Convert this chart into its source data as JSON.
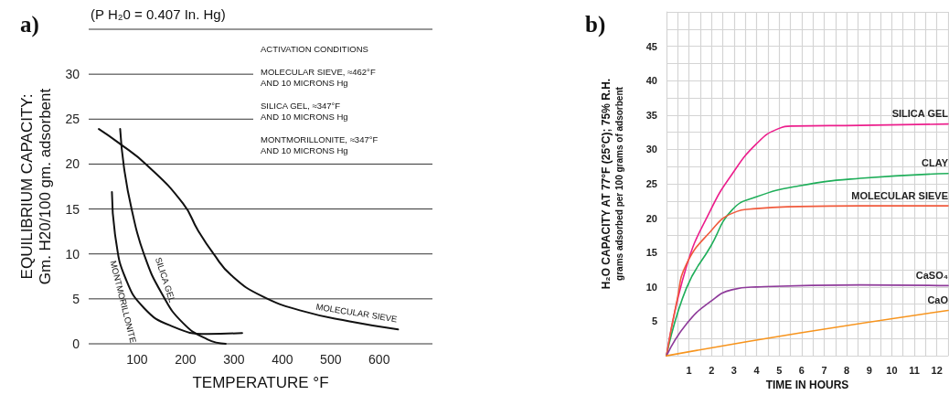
{
  "chart_data": [
    {
      "type": "line",
      "title": "a)",
      "subtitle": "(P H₂0 = 0.407 In. Hg)",
      "xlabel": "TEMPERATURE °F",
      "ylabel": "EQUILIBRIUM CAPACITY:\nGm. H20/100 gm. adsorbent",
      "xlim": [
        0,
        710
      ],
      "xticks": [
        100,
        200,
        300,
        400,
        500,
        600
      ],
      "ylim": [
        0,
        35
      ],
      "yticks": [
        0,
        5,
        10,
        15,
        20,
        25,
        30,
        {
          "value": 35,
          "label": null
        }
      ],
      "grid": "y",
      "marker": "none",
      "annotations": [
        "ACTIVATION CONDITIONS",
        "MOLECULAR SIEVE, ≈462°F\nAND 10 MICRONS Hg",
        "SILICA GEL, ≈347°F\nAND 10 MICRONS Hg",
        "MONTMORILLONITE, ≈347°F\nAND 10 MICRONS Hg",
        "MONTMORILLONITE",
        "SILICA GEL",
        "MOLECULAR SIEVE"
      ],
      "series": [
        {
          "color": "#111111",
          "x": [
            21,
            61,
            120,
            195,
            226,
            258,
            295,
            358,
            445,
            539,
            639
          ],
          "values": [
            23.9,
            22.4,
            19.9,
            15.6,
            12.6,
            10,
            7.6,
            5.3,
            3.6,
            2.5,
            1.6
          ]
        },
        {
          "color": "#111111",
          "x": [
            65,
            73,
            89,
            114,
            151,
            195,
            245,
            283
          ],
          "values": [
            23.9,
            19.6,
            14.9,
            10,
            5.6,
            2.3,
            0.5,
            0
          ]
        },
        {
          "color": "#111111",
          "x": [
            48,
            56,
            76,
            114,
            170,
            245,
            317
          ],
          "values": [
            16.9,
            11.6,
            7.3,
            4,
            2,
            1.1,
            1.2
          ]
        }
      ]
    },
    {
      "type": "line",
      "title": "b)",
      "xlabel": "TIME IN HOURS",
      "ylabel": "H₂O CAPACITY AT 77°F (25°C); 75% R.H.\ngrams adsorbed per 100 grams of adsorbent",
      "xlim": [
        0,
        12.5
      ],
      "xticks": [
        1,
        2,
        3,
        4,
        5,
        6,
        7,
        8,
        9,
        10,
        11,
        12
      ],
      "ylim": [
        0,
        50
      ],
      "yticks": [
        5,
        10,
        15,
        20,
        25,
        30,
        35,
        40,
        45
      ],
      "grid": true,
      "marker": "none",
      "series": [
        {
          "name": "SILICA GEL",
          "color": "#ec1e8c",
          "x": [
            0,
            0.88,
            1.96,
            2.91,
            3.99,
            4.95,
            5.62,
            8.6,
            12.5
          ],
          "values": [
            0,
            12.9,
            21.2,
            26.4,
            30.8,
            33,
            33.4,
            33.5,
            33.7
          ]
        },
        {
          "name": "CLAY",
          "color": "#1fae5a",
          "x": [
            0,
            0.88,
            1.96,
            2.91,
            3.99,
            5.89,
            8.6,
            12.5
          ],
          "values": [
            0,
            9.8,
            15.9,
            21.2,
            23.1,
            24.7,
            25.8,
            26.5
          ]
        },
        {
          "name": "MOLECULAR SIEVE",
          "color": "#f05a3c",
          "x": [
            0,
            0.47,
            0.88,
            1.96,
            2.91,
            3.99,
            5.89,
            8.6,
            12.5
          ],
          "values": [
            0,
            8.1,
            13.3,
            18.1,
            20.7,
            21.4,
            21.7,
            21.8,
            21.8
          ]
        },
        {
          "name": "CaSO₄",
          "color": "#8e3a9a",
          "x": [
            0,
            0.88,
            1.96,
            2.91,
            3.99,
            8.6,
            12.5
          ],
          "values": [
            0,
            4.6,
            7.9,
            9.6,
            10,
            10.3,
            10.2
          ]
        },
        {
          "name": "CaO",
          "color": "#f7941d",
          "x": [
            0,
            5.89,
            12.5
          ],
          "values": [
            0,
            3.3,
            6.6
          ]
        }
      ]
    }
  ]
}
